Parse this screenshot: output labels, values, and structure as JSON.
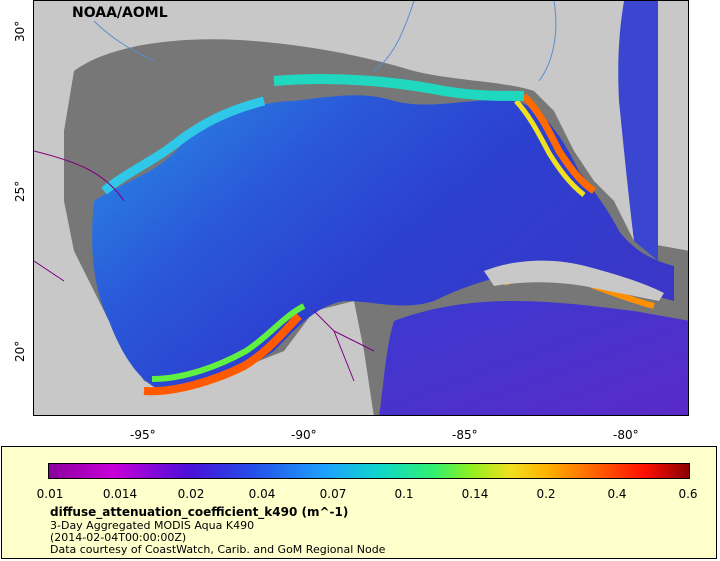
{
  "map": {
    "credit": "NOAA/AOML",
    "lat_ticks": [
      "30°",
      "25°",
      "20°"
    ],
    "lon_ticks": [
      "-95°",
      "-90°",
      "-85°",
      "-80°"
    ],
    "colors": {
      "land": "#c8c8c8",
      "no_data": "#777777",
      "border": "#800080",
      "river": "#5a8fd0"
    }
  },
  "legend": {
    "scale_ticks": [
      "0.01",
      "0.014",
      "0.02",
      "0.04",
      "0.07",
      "0.1",
      "0.14",
      "0.2",
      "0.4",
      "0.6"
    ],
    "variable": "diffuse_attenuation_coefficient_k490 (m^-1)",
    "product": "3-Day Aggregated MODIS Aqua K490",
    "timestamp": "(2014-02-04T00:00:00Z)",
    "courtesy": "Data courtesy of CoastWatch, Carib. and GoM Regional Node"
  }
}
